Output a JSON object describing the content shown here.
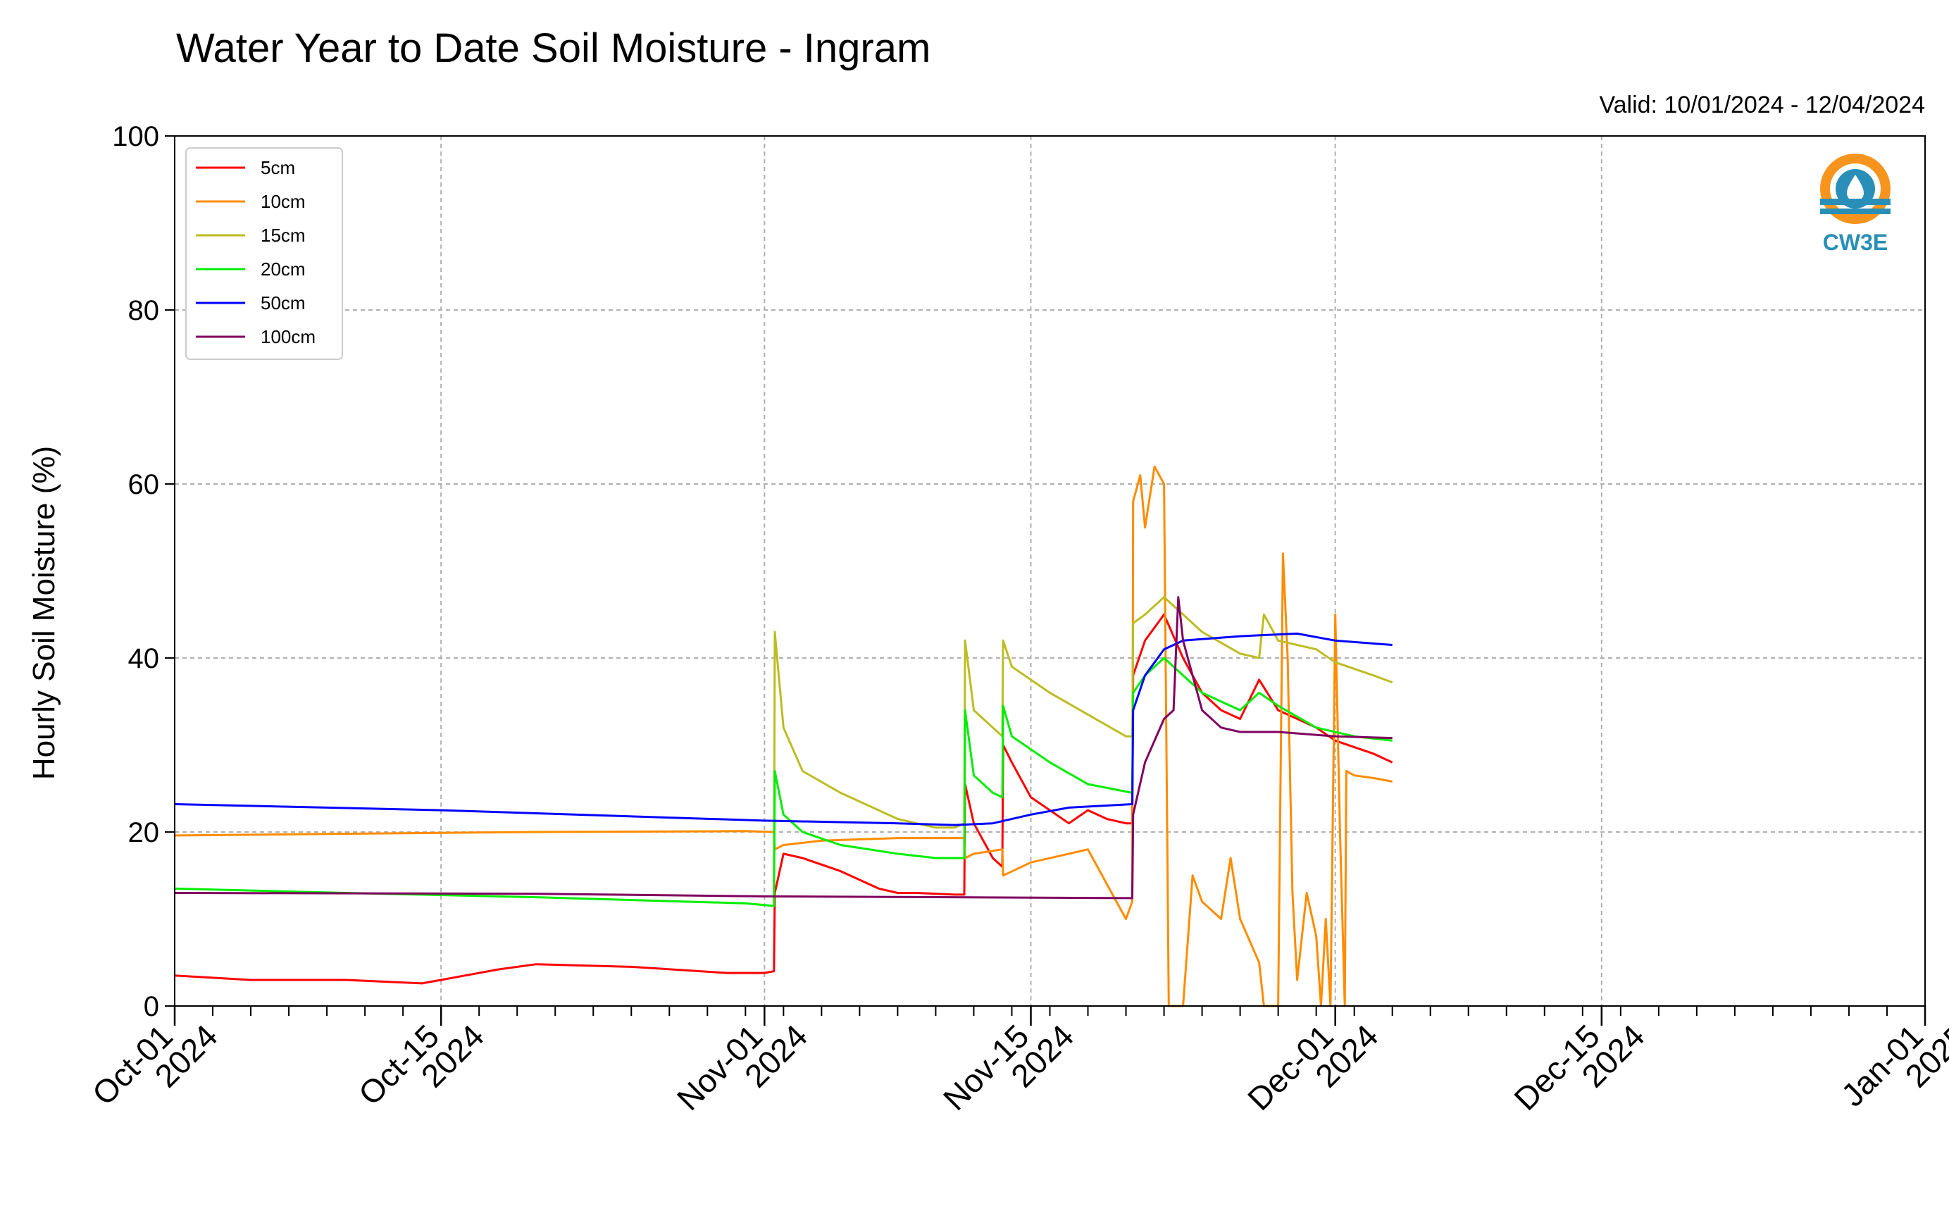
{
  "chart_data": {
    "type": "line",
    "title": "Water Year to Date Soil Moisture - Ingram",
    "subtitle": "Valid: 10/01/2024 - 12/04/2024",
    "xlabel": "",
    "ylabel": "Hourly Soil Moisture (%)",
    "ylim": [
      0,
      100
    ],
    "xlim": [
      "2024-10-01",
      "2025-01-01"
    ],
    "yticks": [
      "0",
      "20",
      "40",
      "60",
      "80",
      "100"
    ],
    "xticks": [
      {
        "date": "2024-10-01",
        "line1": "Oct-01",
        "line2": "2024"
      },
      {
        "date": "2024-10-15",
        "line1": "Oct-15",
        "line2": "2024"
      },
      {
        "date": "2024-11-01",
        "line1": "Nov-01",
        "line2": "2024"
      },
      {
        "date": "2024-11-15",
        "line1": "Nov-15",
        "line2": "2024"
      },
      {
        "date": "2024-12-01",
        "line1": "Dec-01",
        "line2": "2024"
      },
      {
        "date": "2024-12-15",
        "line1": "Dec-15",
        "line2": "2024"
      },
      {
        "date": "2025-01-01",
        "line1": "Jan-01",
        "line2": "2025"
      }
    ],
    "grid": true,
    "legend_position": "top-left",
    "logo_text": "CW3E",
    "series": [
      {
        "name": "5cm",
        "color": "#ff0000",
        "points": [
          [
            "2024-10-01",
            3.5
          ],
          [
            "2024-10-05",
            3.0
          ],
          [
            "2024-10-10",
            3.0
          ],
          [
            "2024-10-14",
            2.6
          ],
          [
            "2024-10-15",
            3.0
          ],
          [
            "2024-10-18",
            4.2
          ],
          [
            "2024-10-20",
            4.8
          ],
          [
            "2024-10-25",
            4.5
          ],
          [
            "2024-10-30",
            3.8
          ],
          [
            "2024-11-01",
            3.8
          ],
          [
            "2024-11-01 12:00",
            4.0
          ],
          [
            "2024-11-01 13:00",
            13.0
          ],
          [
            "2024-11-02",
            17.5
          ],
          [
            "2024-11-03",
            17.0
          ],
          [
            "2024-11-05",
            15.5
          ],
          [
            "2024-11-07",
            13.5
          ],
          [
            "2024-11-08",
            13.0
          ],
          [
            "2024-11-09",
            13.0
          ],
          [
            "2024-11-11",
            12.8
          ],
          [
            "2024-11-11 12:00",
            12.8
          ],
          [
            "2024-11-11 13:00",
            25.5
          ],
          [
            "2024-11-12",
            21.0
          ],
          [
            "2024-11-13",
            17.0
          ],
          [
            "2024-11-13 12:00",
            16.0
          ],
          [
            "2024-11-13 13:00",
            30.0
          ],
          [
            "2024-11-14",
            28.0
          ],
          [
            "2024-11-15",
            24.0
          ],
          [
            "2024-11-17",
            21.0
          ],
          [
            "2024-11-18",
            22.5
          ],
          [
            "2024-11-19",
            21.5
          ],
          [
            "2024-11-20",
            21.0
          ],
          [
            "2024-11-20 08:00",
            21.0
          ],
          [
            "2024-11-20 09:00",
            38.0
          ],
          [
            "2024-11-21",
            42.0
          ],
          [
            "2024-11-22",
            45.0
          ],
          [
            "2024-11-23",
            40.0
          ],
          [
            "2024-11-24",
            36.0
          ],
          [
            "2024-11-25",
            34.0
          ],
          [
            "2024-11-26",
            33.0
          ],
          [
            "2024-11-27",
            37.5
          ],
          [
            "2024-11-28",
            34.0
          ],
          [
            "2024-11-30",
            32.0
          ],
          [
            "2024-12-01",
            30.5
          ],
          [
            "2024-12-03",
            29.0
          ],
          [
            "2024-12-04",
            28.0
          ]
        ]
      },
      {
        "name": "10cm",
        "color": "#ff8c00",
        "points": [
          [
            "2024-10-01",
            19.6
          ],
          [
            "2024-10-10",
            19.8
          ],
          [
            "2024-10-20",
            20.0
          ],
          [
            "2024-10-31",
            20.1
          ],
          [
            "2024-11-01 12:00",
            20.0
          ],
          [
            "2024-11-01 13:00",
            18.0
          ],
          [
            "2024-11-02",
            18.5
          ],
          [
            "2024-11-04",
            19.0
          ],
          [
            "2024-11-08",
            19.3
          ],
          [
            "2024-11-11 12:00",
            19.3
          ],
          [
            "2024-11-11 13:00",
            17.0
          ],
          [
            "2024-11-12",
            17.5
          ],
          [
            "2024-11-13 12:00",
            18.0
          ],
          [
            "2024-11-13 13:00",
            15.0
          ],
          [
            "2024-11-15",
            16.5
          ],
          [
            "2024-11-17",
            17.5
          ],
          [
            "2024-11-18",
            18.0
          ],
          [
            "2024-11-19",
            14.0
          ],
          [
            "2024-11-20",
            10.0
          ],
          [
            "2024-11-20 08:00",
            12.0
          ],
          [
            "2024-11-20 09:00",
            58.0
          ],
          [
            "2024-11-20 18:00",
            61.0
          ],
          [
            "2024-11-21",
            55.0
          ],
          [
            "2024-11-21 12:00",
            62.0
          ],
          [
            "2024-11-22",
            60.0
          ],
          [
            "2024-11-22 06:00",
            0.0
          ],
          [
            "2024-11-23",
            0.0
          ],
          [
            "2024-11-23 12:00",
            15.0
          ],
          [
            "2024-11-24",
            12.0
          ],
          [
            "2024-11-25",
            10.0
          ],
          [
            "2024-11-25 12:00",
            17.0
          ],
          [
            "2024-11-26",
            10.0
          ],
          [
            "2024-11-27",
            5.0
          ],
          [
            "2024-11-27 06:00",
            0.0
          ],
          [
            "2024-11-28",
            0.0
          ],
          [
            "2024-11-28 06:00",
            52.0
          ],
          [
            "2024-11-28 12:00",
            40.0
          ],
          [
            "2024-11-28 18:00",
            13.0
          ],
          [
            "2024-11-29",
            3.0
          ],
          [
            "2024-11-29 12:00",
            13.0
          ],
          [
            "2024-11-30",
            8.0
          ],
          [
            "2024-11-30 06:00",
            0.0
          ],
          [
            "2024-11-30 12:00",
            10.0
          ],
          [
            "2024-11-30 18:00",
            0.0
          ],
          [
            "2024-12-01",
            45.0
          ],
          [
            "2024-12-01 06:00",
            20.0
          ],
          [
            "2024-12-01 12:00",
            0.0
          ],
          [
            "2024-12-01 14:00",
            27.0
          ],
          [
            "2024-12-02",
            26.5
          ],
          [
            "2024-12-03",
            26.2
          ],
          [
            "2024-12-04",
            25.8
          ]
        ]
      },
      {
        "name": "15cm",
        "color": "#bcbd22",
        "points": [
          [
            "2024-11-01 12:00",
            13.0
          ],
          [
            "2024-11-01 13:00",
            43.0
          ],
          [
            "2024-11-02",
            32.0
          ],
          [
            "2024-11-03",
            27.0
          ],
          [
            "2024-11-05",
            24.5
          ],
          [
            "2024-11-07",
            22.5
          ],
          [
            "2024-11-08",
            21.5
          ],
          [
            "2024-11-09",
            21.0
          ],
          [
            "2024-11-10",
            20.5
          ],
          [
            "2024-11-11",
            20.5
          ],
          [
            "2024-11-11 12:00",
            21.0
          ],
          [
            "2024-11-11 13:00",
            42.0
          ],
          [
            "2024-11-12",
            34.0
          ],
          [
            "2024-11-13",
            32.0
          ],
          [
            "2024-11-13 12:00",
            31.0
          ],
          [
            "2024-11-13 13:00",
            42.0
          ],
          [
            "2024-11-14",
            39.0
          ],
          [
            "2024-11-16",
            36.0
          ],
          [
            "2024-11-18",
            33.5
          ],
          [
            "2024-11-20",
            31.0
          ],
          [
            "2024-11-20 08:00",
            31.0
          ],
          [
            "2024-11-20 09:00",
            44.0
          ],
          [
            "2024-11-21",
            45.0
          ],
          [
            "2024-11-22",
            47.0
          ],
          [
            "2024-11-24",
            43.0
          ],
          [
            "2024-11-26",
            40.5
          ],
          [
            "2024-11-27",
            40.0
          ],
          [
            "2024-11-27 06:00",
            45.0
          ],
          [
            "2024-11-28",
            42.0
          ],
          [
            "2024-11-30",
            41.0
          ],
          [
            "2024-12-01",
            39.5
          ],
          [
            "2024-12-03",
            38.0
          ],
          [
            "2024-12-04",
            37.2
          ]
        ]
      },
      {
        "name": "20cm",
        "color": "#00ee00",
        "points": [
          [
            "2024-10-01",
            13.5
          ],
          [
            "2024-10-10",
            13.0
          ],
          [
            "2024-10-20",
            12.5
          ],
          [
            "2024-10-31",
            11.8
          ],
          [
            "2024-11-01 12:00",
            11.5
          ],
          [
            "2024-11-01 13:00",
            27.0
          ],
          [
            "2024-11-02",
            22.0
          ],
          [
            "2024-11-03",
            20.0
          ],
          [
            "2024-11-05",
            18.5
          ],
          [
            "2024-11-08",
            17.5
          ],
          [
            "2024-11-10",
            17.0
          ],
          [
            "2024-11-11 12:00",
            17.0
          ],
          [
            "2024-11-11 13:00",
            34.0
          ],
          [
            "2024-11-12",
            26.5
          ],
          [
            "2024-11-13",
            24.5
          ],
          [
            "2024-11-13 12:00",
            24.0
          ],
          [
            "2024-11-13 13:00",
            34.5
          ],
          [
            "2024-11-14",
            31.0
          ],
          [
            "2024-11-16",
            28.0
          ],
          [
            "2024-11-18",
            25.5
          ],
          [
            "2024-11-20 08:00",
            24.5
          ],
          [
            "2024-11-20 09:00",
            36.0
          ],
          [
            "2024-11-21",
            38.0
          ],
          [
            "2024-11-22",
            40.0
          ],
          [
            "2024-11-24",
            36.0
          ],
          [
            "2024-11-26",
            34.0
          ],
          [
            "2024-11-27",
            36.0
          ],
          [
            "2024-11-28",
            34.5
          ],
          [
            "2024-11-30",
            32.0
          ],
          [
            "2024-12-02",
            31.0
          ],
          [
            "2024-12-04",
            30.5
          ]
        ]
      },
      {
        "name": "50cm",
        "color": "#0000ff",
        "points": [
          [
            "2024-10-01",
            23.2
          ],
          [
            "2024-10-15",
            22.5
          ],
          [
            "2024-11-01",
            21.3
          ],
          [
            "2024-11-08",
            21.0
          ],
          [
            "2024-11-11",
            20.8
          ],
          [
            "2024-11-13",
            21.0
          ],
          [
            "2024-11-15",
            22.0
          ],
          [
            "2024-11-17",
            22.8
          ],
          [
            "2024-11-20 08:00",
            23.2
          ],
          [
            "2024-11-20 09:00",
            34.0
          ],
          [
            "2024-11-21",
            38.0
          ],
          [
            "2024-11-22",
            41.0
          ],
          [
            "2024-11-23",
            42.0
          ],
          [
            "2024-11-26",
            42.5
          ],
          [
            "2024-11-29",
            42.8
          ],
          [
            "2024-12-01",
            42.0
          ],
          [
            "2024-12-04",
            41.5
          ]
        ]
      },
      {
        "name": "100cm",
        "color": "#800060",
        "points": [
          [
            "2024-10-01",
            13.0
          ],
          [
            "2024-10-20",
            12.9
          ],
          [
            "2024-11-01",
            12.6
          ],
          [
            "2024-11-11",
            12.5
          ],
          [
            "2024-11-20 08:00",
            12.4
          ],
          [
            "2024-11-20 09:00",
            22.0
          ],
          [
            "2024-11-21",
            28.0
          ],
          [
            "2024-11-22",
            33.0
          ],
          [
            "2024-11-22 12:00",
            34.0
          ],
          [
            "2024-11-22 18:00",
            47.0
          ],
          [
            "2024-11-23",
            42.0
          ],
          [
            "2024-11-24",
            34.0
          ],
          [
            "2024-11-25",
            32.0
          ],
          [
            "2024-11-26",
            31.5
          ],
          [
            "2024-11-28",
            31.5
          ],
          [
            "2024-12-01",
            31.0
          ],
          [
            "2024-12-04",
            30.8
          ]
        ]
      }
    ]
  }
}
